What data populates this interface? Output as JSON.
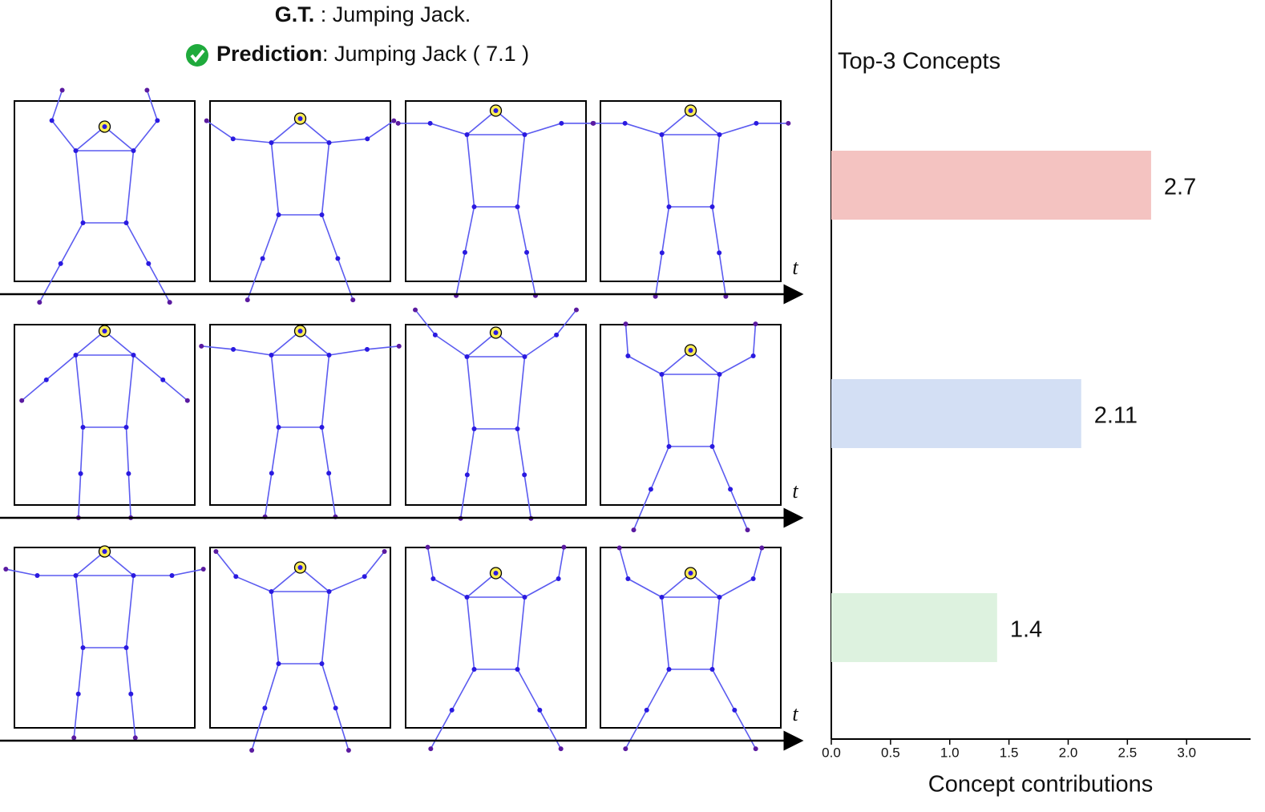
{
  "header": {
    "gt_label": "G.T.",
    "gt_text": " : Jumping Jack.",
    "pred_label": "Prediction",
    "pred_text": ": Jumping Jack ( 7.1 )"
  },
  "time_label": "t",
  "chart_data": {
    "type": "hbar",
    "title": "Top-3 Concepts",
    "x_label": "Concept contributions",
    "categories": [
      null,
      null,
      null
    ],
    "values": [
      2.7,
      2.11,
      1.4
    ],
    "colors": [
      "#f4c3c1",
      "#d3dff4",
      "#ddf2df"
    ],
    "xlim": [
      0,
      3.54
    ],
    "xticks": [
      {
        "value": 0,
        "label": "0.0"
      },
      0.5,
      {
        "value": 1,
        "label": "1.0"
      },
      1.5,
      {
        "value": 2,
        "label": "2.0"
      },
      2.5,
      {
        "value": 3,
        "label": "3.0"
      }
    ]
  }
}
